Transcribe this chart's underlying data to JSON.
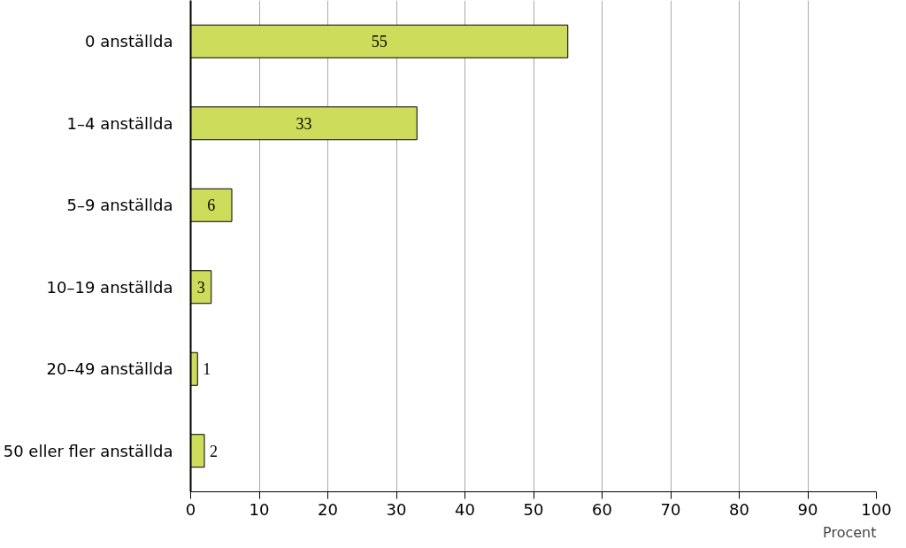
{
  "chart_data": {
    "type": "bar",
    "orientation": "horizontal",
    "categories": [
      "0 anställda",
      "1–4 anställda",
      "5–9 anställda",
      "10–19 anställda",
      "20–49 anställda",
      "50 eller fler anställda"
    ],
    "values": [
      55,
      33,
      6,
      3,
      1,
      2
    ],
    "color": "#cddc5a",
    "data_labels": true,
    "xlabel": "Procent",
    "xlim": [
      0,
      100
    ],
    "xticks": [
      0,
      10,
      20,
      30,
      40,
      50,
      60,
      70,
      80,
      90,
      100
    ],
    "grid": "x"
  }
}
